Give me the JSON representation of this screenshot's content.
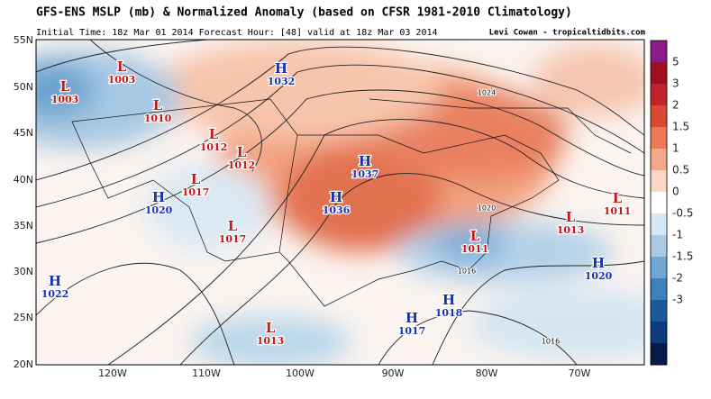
{
  "header": {
    "title": "GFS-ENS MSLP (mb) & Normalized Anomaly (based on CFSR 1981-2010 Climatology)",
    "subtitle": "Initial Time: 18z Mar 01 2014 Forecast Hour: [48] valid at 18z Mar 03 2014",
    "credit": "Levi Cowan - tropicaltidbits.com"
  },
  "map": {
    "lat_labels": [
      "55N",
      "50N",
      "45N",
      "40N",
      "35N",
      "30N",
      "25N",
      "20N"
    ],
    "lon_labels": [
      "120W",
      "110W",
      "100W",
      "90W",
      "80W",
      "70W"
    ],
    "centers": [
      {
        "type": "L",
        "value": "1003"
      },
      {
        "type": "L",
        "value": "1003"
      },
      {
        "type": "L",
        "value": "1010"
      },
      {
        "type": "H",
        "value": "1032"
      },
      {
        "type": "L",
        "value": "1012"
      },
      {
        "type": "L",
        "value": "1012"
      },
      {
        "type": "L",
        "value": "1017"
      },
      {
        "type": "H",
        "value": "1037"
      },
      {
        "type": "H",
        "value": "1020"
      },
      {
        "type": "H",
        "value": "1036"
      },
      {
        "type": "L",
        "value": "1017"
      },
      {
        "type": "L",
        "value": "1011"
      },
      {
        "type": "L",
        "value": "1013"
      },
      {
        "type": "L",
        "value": "1011"
      },
      {
        "type": "H",
        "value": "1020"
      },
      {
        "type": "H",
        "value": "1022"
      },
      {
        "type": "H",
        "value": "1018"
      },
      {
        "type": "H",
        "value": "1017"
      },
      {
        "type": "L",
        "value": "1013"
      }
    ],
    "isobar_labels": [
      "1024",
      "1020",
      "1016",
      "1016"
    ]
  },
  "colorbar": {
    "labels": [
      "5",
      "3",
      "2",
      "1.5",
      "1",
      "0.5",
      "0",
      "-0.5",
      "-1",
      "-1.5",
      "-2",
      "-3"
    ]
  }
}
